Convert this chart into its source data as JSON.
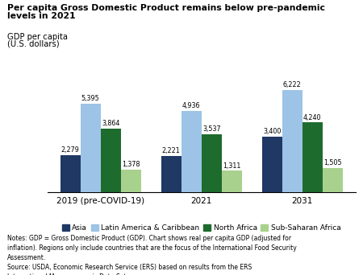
{
  "title_line1": "Per capita Gross Domestic Product remains below pre-pandemic",
  "title_line2": "levels in 2021",
  "ylabel_line1": "GDP per capita",
  "ylabel_line2": "(U.S. dollars)",
  "groups": [
    "2019 (pre-COVID-19)",
    "2021",
    "2031"
  ],
  "series": [
    "Asia",
    "Latin America & Caribbean",
    "North Africa",
    "Sub-Saharan Africa"
  ],
  "values": [
    [
      2279,
      5395,
      3864,
      1378
    ],
    [
      2221,
      4936,
      3537,
      1311
    ],
    [
      3400,
      6222,
      4240,
      1505
    ]
  ],
  "colors": [
    "#1f3864",
    "#9dc3e6",
    "#1e6b2e",
    "#a9d18e"
  ],
  "ylim": [
    0,
    7000
  ],
  "notes_line1": "Notes: GDP = Gross Domestic Product (GDP). Chart shows real per capita GDP (adjusted for",
  "notes_line2": "inflation). Regions only include countries that are the focus of the International Food Security",
  "notes_line3": "Assessment.",
  "notes_line4": "Source: USDA, Economic Research Service (ERS) based on results from the ERS",
  "notes_line5": "International Macroeconomic Data Set.",
  "bar_width": 0.17,
  "group_centers": [
    0.35,
    1.2,
    2.05
  ]
}
